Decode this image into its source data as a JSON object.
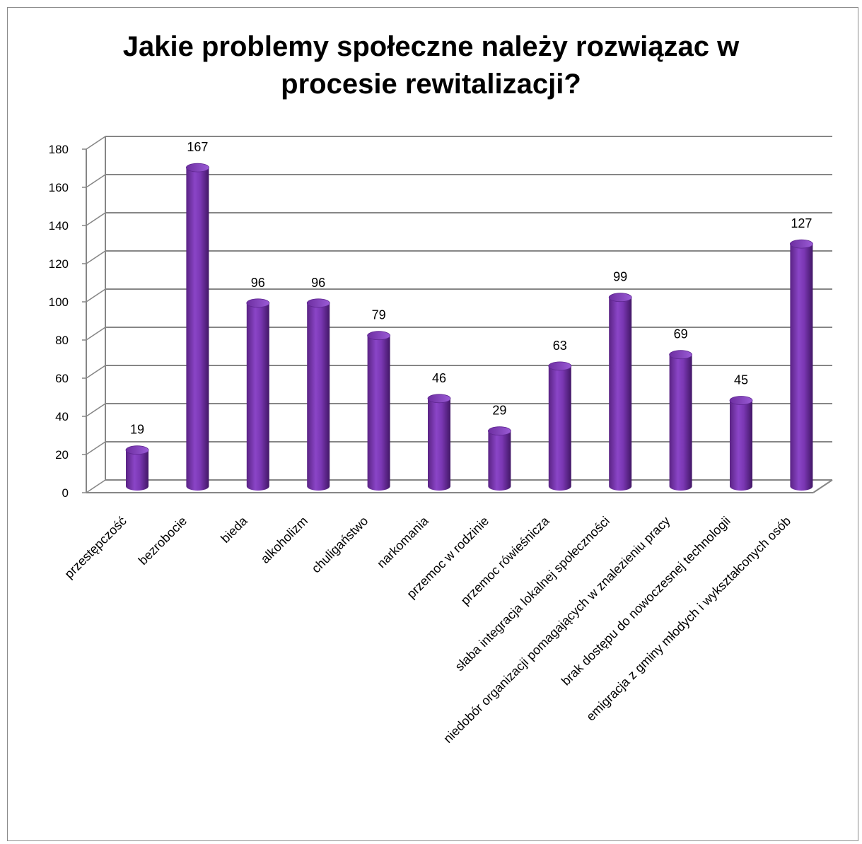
{
  "chart_data": {
    "type": "bar",
    "title": "Jakie problemy społeczne należy rozwiązac w procesie rewitalizacji?",
    "categories": [
      "przestępczość",
      "bezrobocie",
      "bieda",
      "alkoholizm",
      "chuligaństwo",
      "narkomania",
      "przemoc w rodzinie",
      "przemoc rówieśnicza",
      "słaba integracja lokalnej społeczności",
      "niedobór organizacji pomagających w znalezieniu pracy",
      "brak dostępu do nowoczesnej technologii",
      "emigracja z gminy młodych i wykształconych osób"
    ],
    "values": [
      19,
      167,
      96,
      96,
      79,
      46,
      29,
      63,
      99,
      69,
      45,
      127
    ],
    "ylim": [
      0,
      180
    ],
    "yticks": [
      0,
      20,
      40,
      60,
      80,
      100,
      120,
      140,
      160,
      180
    ],
    "grid": true,
    "legend": "none",
    "bar_color": "#7030a0",
    "data_labels": true
  }
}
